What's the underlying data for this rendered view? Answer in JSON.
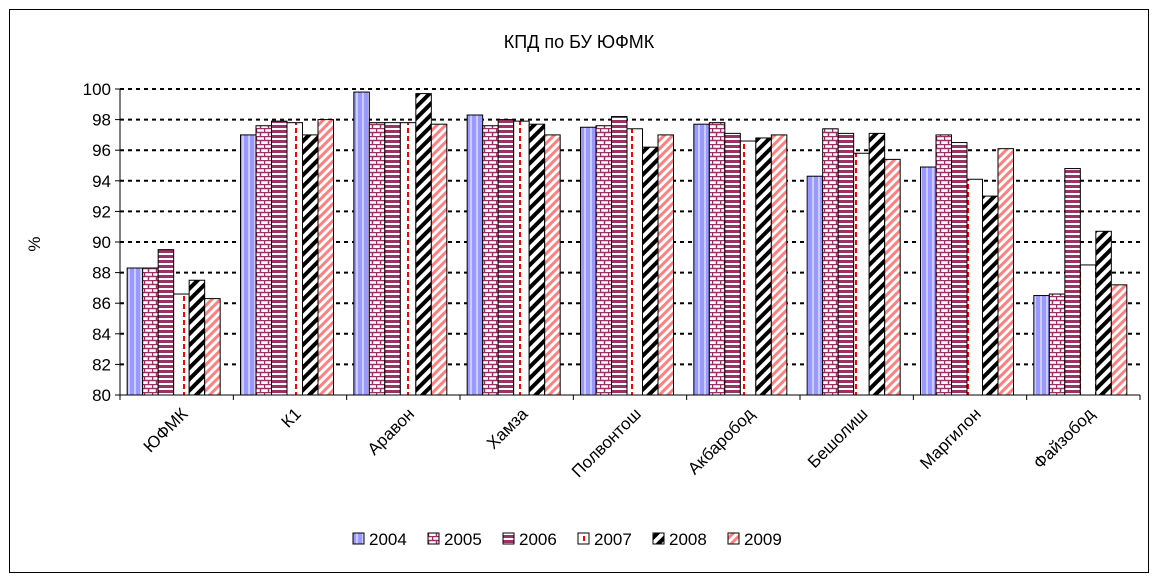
{
  "chart_data": {
    "type": "bar",
    "title": "КПД по БУ ЮФМК",
    "xlabel": "",
    "ylabel": "%",
    "ylim": [
      80,
      100
    ],
    "yticks": [
      80,
      82,
      84,
      86,
      88,
      90,
      92,
      94,
      96,
      98,
      100
    ],
    "grid": true,
    "legend_position": "bottom",
    "categories": [
      "ЮФМК",
      "К1",
      "Аравон",
      "Хамза",
      "Полвонтош",
      "Акбаробод",
      "Бешолиш",
      "Маргилон",
      "Файзобод"
    ],
    "series": [
      {
        "name": "2004",
        "values": [
          88.3,
          97.0,
          99.8,
          98.3,
          97.5,
          97.7,
          94.3,
          94.9,
          86.5
        ],
        "color": "#9999ff",
        "pattern": "solid-blue"
      },
      {
        "name": "2005",
        "values": [
          88.3,
          97.6,
          97.8,
          97.6,
          97.6,
          97.8,
          97.4,
          97.0,
          86.6
        ],
        "color": "#993366",
        "pattern": "brick"
      },
      {
        "name": "2006",
        "values": [
          89.5,
          97.9,
          97.8,
          98.0,
          98.2,
          97.1,
          97.1,
          96.5,
          94.8
        ],
        "color": "#993366",
        "pattern": "horizontal"
      },
      {
        "name": "2007",
        "values": [
          86.6,
          97.8,
          97.8,
          97.9,
          97.4,
          96.6,
          95.8,
          94.1,
          88.5
        ],
        "color": "#ff0000",
        "pattern": "dashed-vertical"
      },
      {
        "name": "2008",
        "values": [
          87.5,
          97.0,
          99.7,
          97.7,
          96.2,
          96.8,
          97.1,
          93.0,
          90.7
        ],
        "color": "#000000",
        "pattern": "diagonal-bold"
      },
      {
        "name": "2009",
        "values": [
          86.3,
          98.0,
          97.7,
          97.0,
          97.0,
          97.0,
          95.4,
          96.1,
          87.2
        ],
        "color": "#ff8080",
        "pattern": "diagonal"
      }
    ]
  }
}
